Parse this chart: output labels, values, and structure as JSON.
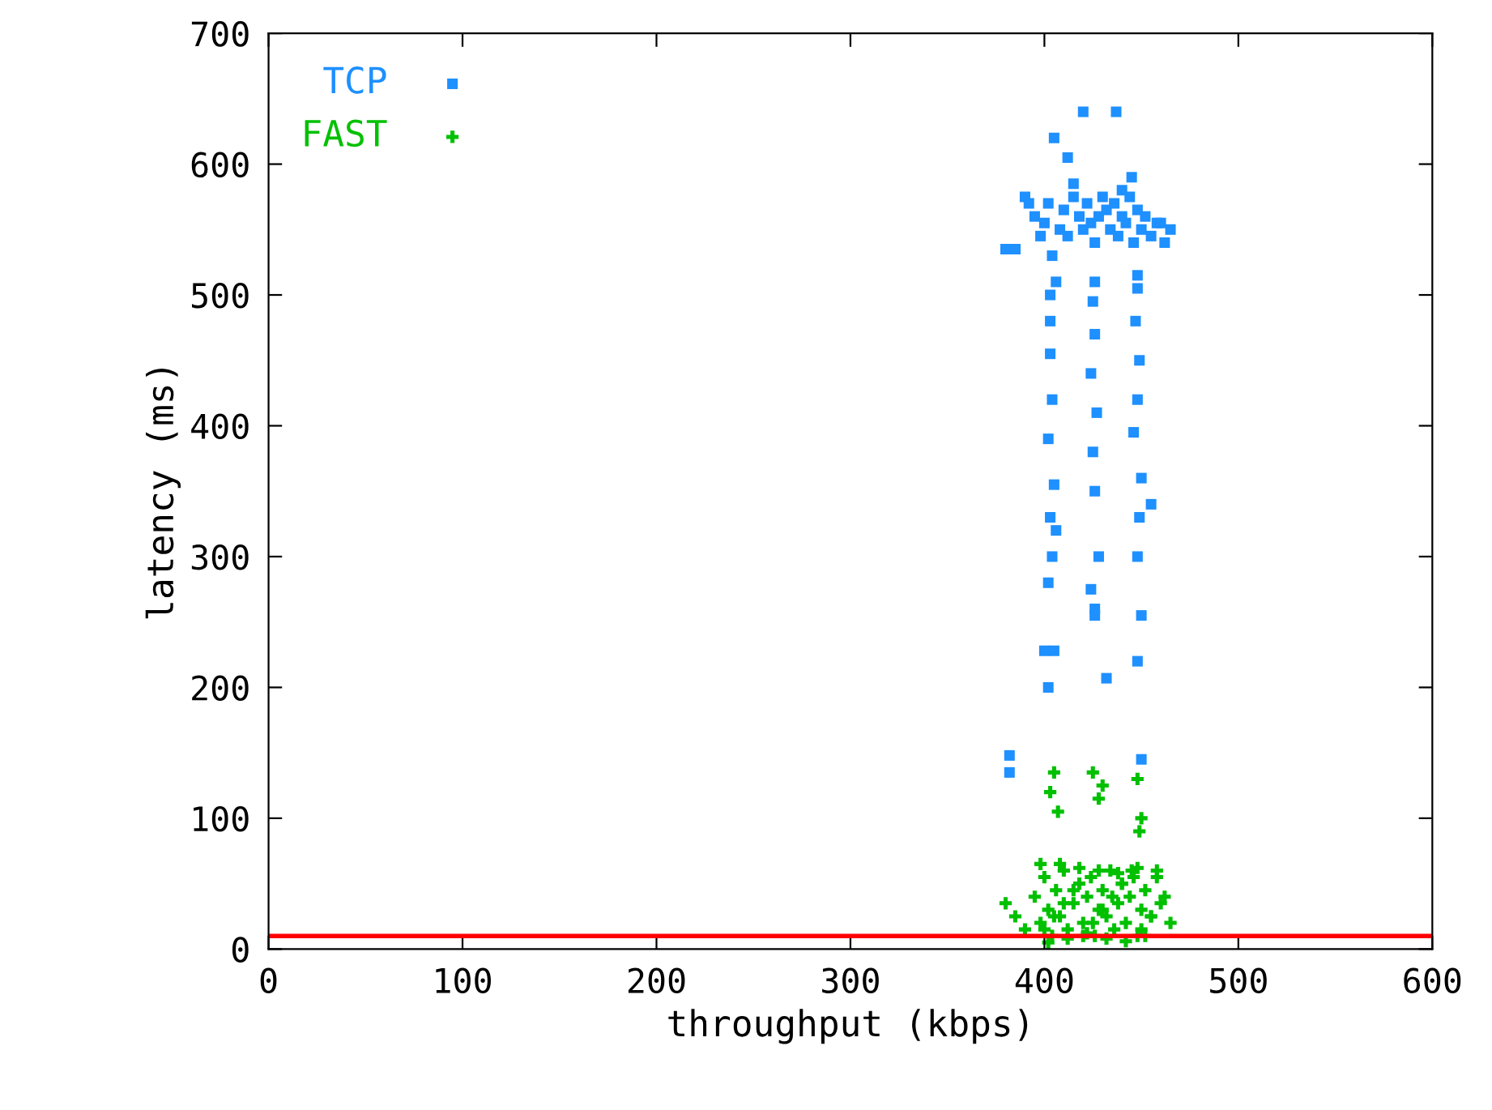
{
  "chart_data": {
    "type": "scatter",
    "xlabel": "throughput (kbps)",
    "ylabel": "latency (ms)",
    "xlim": [
      0,
      600
    ],
    "ylim": [
      0,
      700
    ],
    "xticks": [
      0,
      100,
      200,
      300,
      400,
      500,
      600
    ],
    "yticks": [
      0,
      100,
      200,
      300,
      400,
      500,
      600,
      700
    ],
    "grid": false,
    "legend": "top left",
    "ref_lines": [
      {
        "axis": "y",
        "value": 10,
        "color": "#ff0000"
      }
    ],
    "series": [
      {
        "name": "TCP",
        "color": "#1e90ff",
        "marker": "square",
        "x": [
          380,
          385,
          390,
          395,
          398,
          400,
          402,
          404,
          406,
          408,
          410,
          412,
          415,
          418,
          420,
          422,
          424,
          426,
          428,
          430,
          432,
          434,
          436,
          438,
          440,
          442,
          444,
          446,
          448,
          450,
          452,
          455,
          458,
          462,
          465,
          382,
          382,
          405,
          420,
          437,
          412,
          445,
          400,
          405,
          402,
          426,
          432,
          448,
          450,
          450,
          455,
          403,
          403,
          404,
          402,
          405,
          403,
          406,
          402,
          404,
          425,
          426,
          424,
          427,
          425,
          426,
          428,
          424,
          426,
          448,
          447,
          449,
          448,
          446,
          450,
          449,
          448,
          403,
          426,
          448,
          392,
          415,
          440,
          460
        ],
        "values": [
          535,
          535,
          575,
          560,
          545,
          555,
          570,
          530,
          510,
          550,
          565,
          545,
          575,
          560,
          550,
          570,
          555,
          540,
          560,
          575,
          565,
          550,
          570,
          545,
          560,
          555,
          575,
          540,
          565,
          550,
          560,
          545,
          555,
          540,
          550,
          148,
          135,
          620,
          640,
          640,
          605,
          590,
          228,
          228,
          200,
          255,
          207,
          220,
          145,
          255,
          340,
          480,
          455,
          420,
          390,
          355,
          330,
          320,
          280,
          300,
          495,
          470,
          440,
          410,
          380,
          350,
          300,
          275,
          260,
          505,
          480,
          450,
          420,
          395,
          360,
          330,
          300,
          500,
          510,
          515,
          570,
          585,
          580,
          555
        ]
      },
      {
        "name": "FAST",
        "color": "#00c000",
        "marker": "cross",
        "x": [
          380,
          385,
          390,
          395,
          398,
          400,
          402,
          404,
          406,
          408,
          410,
          412,
          415,
          418,
          420,
          422,
          424,
          426,
          428,
          430,
          432,
          434,
          436,
          438,
          440,
          442,
          444,
          446,
          448,
          450,
          452,
          455,
          458,
          462,
          465,
          400,
          405,
          410,
          415,
          420,
          425,
          430,
          435,
          440,
          445,
          450,
          455,
          460,
          398,
          408,
          418,
          428,
          438,
          448,
          458,
          405,
          403,
          407,
          425,
          428,
          430,
          448,
          450,
          449,
          402,
          412,
          422,
          432,
          442,
          452
        ],
        "values": [
          35,
          25,
          15,
          40,
          20,
          55,
          30,
          10,
          45,
          25,
          60,
          15,
          35,
          50,
          20,
          40,
          55,
          10,
          30,
          45,
          25,
          60,
          15,
          35,
          50,
          20,
          40,
          55,
          10,
          30,
          45,
          25,
          60,
          40,
          20,
          15,
          25,
          35,
          45,
          10,
          20,
          30,
          40,
          50,
          60,
          15,
          25,
          35,
          65,
          65,
          62,
          60,
          58,
          62,
          55,
          135,
          120,
          105,
          135,
          115,
          125,
          130,
          100,
          90,
          5,
          8,
          12,
          8,
          6,
          10
        ]
      }
    ]
  }
}
